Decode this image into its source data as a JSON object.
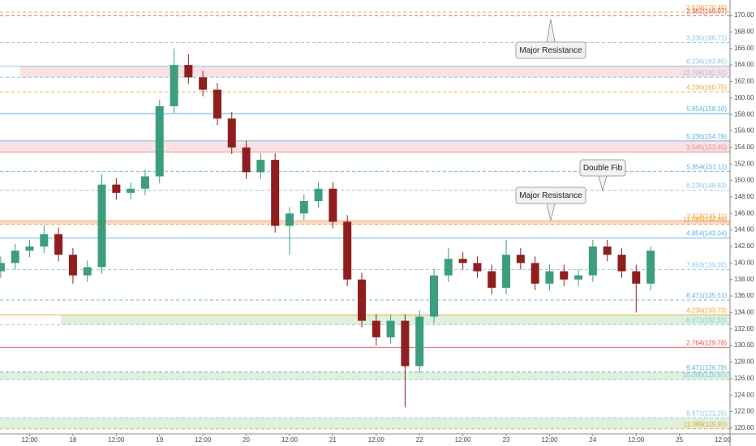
{
  "chart_data": {
    "type": "candlestick",
    "x": [
      -20,
      -16,
      -12,
      -8,
      -4,
      0,
      4,
      8,
      12,
      16,
      20,
      24,
      28,
      32,
      36,
      40,
      44,
      48,
      52,
      56,
      60,
      64,
      68,
      72,
      76,
      80,
      84,
      88,
      92,
      96,
      100,
      104,
      108,
      112,
      116,
      120,
      124,
      128,
      132,
      136,
      140,
      144,
      148,
      152,
      156,
      160
    ],
    "open": [
      139.0,
      140.0,
      141.5,
      142.0,
      143.5,
      141.0,
      138.5,
      139.5,
      149.5,
      148.5,
      149.0,
      150.5,
      159.0,
      164.0,
      162.5,
      161.0,
      157.5,
      154.0,
      151.0,
      152.5,
      144.5,
      146.0,
      147.5,
      149.0,
      145.0,
      138.0,
      133.0,
      131.0,
      133.0,
      127.5,
      133.5,
      138.5,
      140.5,
      140.0,
      139.0,
      137.0,
      141.0,
      140.0,
      137.5,
      139.0,
      138.0,
      138.5,
      142.0,
      141.0,
      139.0,
      137.5
    ],
    "high": [
      140.8,
      142.3,
      142.8,
      144.6,
      144.3,
      141.8,
      140.3,
      150.8,
      150.3,
      149.8,
      151.3,
      159.8,
      166.0,
      165.3,
      163.3,
      161.8,
      158.3,
      154.8,
      153.3,
      153.3,
      146.8,
      148.3,
      149.8,
      149.8,
      145.8,
      138.8,
      133.8,
      133.8,
      133.8,
      134.3,
      139.3,
      141.8,
      141.3,
      140.8,
      139.8,
      142.8,
      141.8,
      140.8,
      139.8,
      139.8,
      139.3,
      142.8,
      142.8,
      141.8,
      139.8,
      142.0
    ],
    "low": [
      138.2,
      139.2,
      140.7,
      141.2,
      140.2,
      137.5,
      137.7,
      138.7,
      147.7,
      147.7,
      148.2,
      149.7,
      158.2,
      161.7,
      160.2,
      156.7,
      153.2,
      150.2,
      150.2,
      143.7,
      141.0,
      145.2,
      146.7,
      144.2,
      137.2,
      132.2,
      130.0,
      130.2,
      122.5,
      126.7,
      132.7,
      137.7,
      139.2,
      138.2,
      136.2,
      136.2,
      139.2,
      136.7,
      136.7,
      137.2,
      137.2,
      137.7,
      140.2,
      138.2,
      134.0,
      136.7
    ],
    "close": [
      140.0,
      141.5,
      142.0,
      143.5,
      141.0,
      138.5,
      139.5,
      149.5,
      148.5,
      149.0,
      150.5,
      159.0,
      164.0,
      162.5,
      161.0,
      157.5,
      154.0,
      151.0,
      152.5,
      144.5,
      146.0,
      147.5,
      149.0,
      145.0,
      138.0,
      133.0,
      131.0,
      133.0,
      127.5,
      133.5,
      138.5,
      140.5,
      140.0,
      139.0,
      137.0,
      141.0,
      140.0,
      137.5,
      139.0,
      138.0,
      138.5,
      142.0,
      141.0,
      139.0,
      137.5,
      141.5
    ],
    "up_color": "#3d9e7f",
    "down_color": "#8f1f1f",
    "xlim": [
      -20.2,
      182.0
    ],
    "xticks": [
      {
        "value": -12,
        "label": "12:00"
      },
      {
        "value": 0,
        "label": "18"
      },
      {
        "value": 12,
        "label": "12:00"
      },
      {
        "value": 24,
        "label": "19"
      },
      {
        "value": 36,
        "label": "12:00"
      },
      {
        "value": 48,
        "label": "20"
      },
      {
        "value": 60,
        "label": "12:00"
      },
      {
        "value": 72,
        "label": "21"
      },
      {
        "value": 84,
        "label": "12:00"
      },
      {
        "value": 96,
        "label": "22"
      },
      {
        "value": 108,
        "label": "12:00"
      },
      {
        "value": 120,
        "label": "23"
      },
      {
        "value": 132,
        "label": "12:00"
      },
      {
        "value": 144,
        "label": "24"
      },
      {
        "value": 156,
        "label": "12:00"
      },
      {
        "value": 168,
        "label": "25"
      },
      {
        "value": 180,
        "label": "12:00"
      }
    ],
    "ylim": [
      119.3,
      171.87
    ],
    "yticks": [
      {
        "value": 120,
        "label": "120.00"
      },
      {
        "value": 122,
        "label": "122.00"
      },
      {
        "value": 124,
        "label": "124.00"
      },
      {
        "value": 126,
        "label": "126.00"
      },
      {
        "value": 128,
        "label": "128.00"
      },
      {
        "value": 130,
        "label": "130.00"
      },
      {
        "value": 132,
        "label": "132.00"
      },
      {
        "value": 134,
        "label": "134.00"
      },
      {
        "value": 136,
        "label": "136.00"
      },
      {
        "value": 138,
        "label": "138.00"
      },
      {
        "value": 140,
        "label": "140.00"
      },
      {
        "value": 142,
        "label": "142.00"
      },
      {
        "value": 144,
        "label": "144.00"
      },
      {
        "value": 146,
        "label": "146.00"
      },
      {
        "value": 148,
        "label": "148.00"
      },
      {
        "value": 150,
        "label": "150.00"
      },
      {
        "value": 152,
        "label": "152.00"
      },
      {
        "value": 154,
        "label": "154.00"
      },
      {
        "value": 156,
        "label": "156.00"
      },
      {
        "value": 158,
        "label": "158.00"
      },
      {
        "value": 160,
        "label": "160.00"
      },
      {
        "value": 162,
        "label": "162.00"
      },
      {
        "value": 164,
        "label": "164.00"
      },
      {
        "value": 166,
        "label": "166.00"
      },
      {
        "value": 168,
        "label": "168.00"
      },
      {
        "value": 170,
        "label": "170.00"
      }
    ],
    "levels": [
      {
        "label": "2.618(170.40)",
        "value": 170.4,
        "color": "#f0a030",
        "style": "dashed"
      },
      {
        "label": "2.382(169.97)",
        "value": 169.97,
        "color": "#e05050",
        "style": "dashed"
      },
      {
        "label": "3.236(166.71)",
        "value": 166.71,
        "color": "#8cc4e8",
        "style": "dashed"
      },
      {
        "label": "6.236(163.85)",
        "value": 163.85,
        "color": "#8cc4e8",
        "style": "solid"
      },
      {
        "label": "12.706(162.51)",
        "value": 162.51,
        "color": "#8cc4e8",
        "style": "dashed"
      },
      {
        "label": "4.236(160.75)",
        "value": 160.75,
        "color": "#f0a030",
        "style": "dashed"
      },
      {
        "label": "5.854(158.10)",
        "value": 158.1,
        "color": "#5eaee0",
        "style": "solid"
      },
      {
        "label": "5.236(154.79)",
        "value": 154.79,
        "color": "#5eaee0",
        "style": "solid"
      },
      {
        "label": "3.545(153.45)",
        "value": 153.45,
        "color": "#e08a8a",
        "style": "solid"
      },
      {
        "label": "5.854(151.11)",
        "value": 151.11,
        "color": "#5eaee0",
        "style": "dashed"
      },
      {
        "label": "6.236(148.83)",
        "value": 148.83,
        "color": "#8cc4e8",
        "style": "dashed"
      },
      {
        "label": "2.618(145.11)",
        "value": 145.11,
        "color": "#f0a030",
        "style": "solid"
      },
      {
        "label": "11.089(144.69)",
        "value": 144.69,
        "color": "#f0a030",
        "style": "dashed"
      },
      {
        "label": "4.854(143.04)",
        "value": 143.04,
        "color": "#5eaee0",
        "style": "solid"
      },
      {
        "label": "7.853(139.20)",
        "value": 139.2,
        "color": "#8cc4e8",
        "style": "dashed"
      },
      {
        "label": "8.471(135.51)",
        "value": 135.51,
        "color": "#5eaee0",
        "style": "dashed"
      },
      {
        "label": "4.236(133.73)",
        "value": 133.73,
        "color": "#f0a030",
        "style": "solid"
      },
      {
        "label": "8.971(132.53)",
        "value": 132.53,
        "color": "#8cc4e8",
        "style": "dashed"
      },
      {
        "label": "2.764(129.78)",
        "value": 129.78,
        "color": "#e05050",
        "style": "solid"
      },
      {
        "label": "9.471(126.78)",
        "value": 126.78,
        "color": "#5eaee0",
        "style": "dashed"
      },
      {
        "label": "10.089(125.87)",
        "value": 125.87,
        "color": "#8cc4e8",
        "style": "dashed"
      },
      {
        "label": "8.971(121.25)",
        "value": 121.25,
        "color": "#8cc4e8",
        "style": "dashed"
      },
      {
        "label": "11.089(119.91)",
        "value": 119.91,
        "color": "#f0a030",
        "style": "dashed"
      }
    ],
    "annotations": [
      "Major Resistance",
      "Double Fib",
      "Major Resistance"
    ]
  }
}
